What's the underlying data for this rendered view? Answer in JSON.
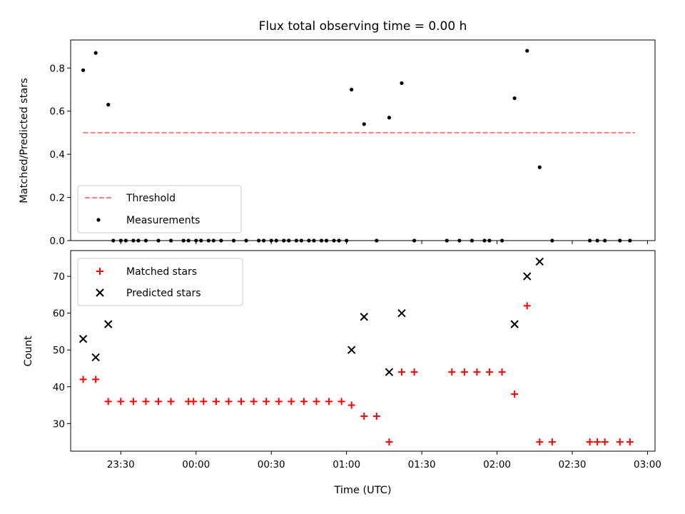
{
  "chart_data": [
    {
      "type": "scatter",
      "title": "Flux total observing time = 0.00 h",
      "ylabel": "Matched/Predicted stars",
      "xlabel": "",
      "xlim": [
        "23:10",
        "03:03"
      ],
      "ylim": [
        0,
        0.93
      ],
      "yticks": [
        0.0,
        0.2,
        0.4,
        0.6,
        0.8
      ],
      "ytick_labels": [
        "0.0",
        "0.2",
        "0.4",
        "0.6",
        "0.8"
      ],
      "legend_position": "lower-left",
      "threshold": {
        "name": "Threshold",
        "value": 0.5,
        "x_start": "23:15",
        "x_end": "02:55",
        "color": "#ff7f7f"
      },
      "series": [
        {
          "name": "Measurements",
          "color": "#000000",
          "points": [
            [
              "23:15",
              0.79
            ],
            [
              "23:20",
              0.87
            ],
            [
              "23:25",
              0.63
            ],
            [
              "23:27",
              0.0
            ],
            [
              "23:30",
              0.0
            ],
            [
              "23:32",
              0.0
            ],
            [
              "23:35",
              0.0
            ],
            [
              "23:37",
              0.0
            ],
            [
              "23:40",
              0.0
            ],
            [
              "23:45",
              0.0
            ],
            [
              "23:50",
              0.0
            ],
            [
              "23:55",
              0.0
            ],
            [
              "23:57",
              0.0
            ],
            [
              "00:00",
              0.0
            ],
            [
              "00:02",
              0.0
            ],
            [
              "00:05",
              0.0
            ],
            [
              "00:07",
              0.0
            ],
            [
              "00:10",
              0.0
            ],
            [
              "00:15",
              0.0
            ],
            [
              "00:20",
              0.0
            ],
            [
              "00:25",
              0.0
            ],
            [
              "00:27",
              0.0
            ],
            [
              "00:30",
              0.0
            ],
            [
              "00:32",
              0.0
            ],
            [
              "00:35",
              0.0
            ],
            [
              "00:37",
              0.0
            ],
            [
              "00:40",
              0.0
            ],
            [
              "00:42",
              0.0
            ],
            [
              "00:45",
              0.0
            ],
            [
              "00:47",
              0.0
            ],
            [
              "00:50",
              0.0
            ],
            [
              "00:52",
              0.0
            ],
            [
              "00:55",
              0.0
            ],
            [
              "00:57",
              0.0
            ],
            [
              "01:00",
              0.0
            ],
            [
              "01:02",
              0.7
            ],
            [
              "01:07",
              0.54
            ],
            [
              "01:12",
              0.0
            ],
            [
              "01:17",
              0.57
            ],
            [
              "01:22",
              0.73
            ],
            [
              "01:27",
              0.0
            ],
            [
              "01:40",
              0.0
            ],
            [
              "01:45",
              0.0
            ],
            [
              "01:50",
              0.0
            ],
            [
              "01:55",
              0.0
            ],
            [
              "01:57",
              0.0
            ],
            [
              "02:02",
              0.0
            ],
            [
              "02:07",
              0.66
            ],
            [
              "02:12",
              0.88
            ],
            [
              "02:17",
              0.34
            ],
            [
              "02:22",
              0.0
            ],
            [
              "02:37",
              0.0
            ],
            [
              "02:40",
              0.0
            ],
            [
              "02:43",
              0.0
            ],
            [
              "02:49",
              0.0
            ],
            [
              "02:53",
              0.0
            ]
          ]
        }
      ]
    },
    {
      "type": "scatter",
      "title": "",
      "ylabel": "Count",
      "xlabel": "Time (UTC)",
      "xlim": [
        "23:10",
        "03:03"
      ],
      "ylim": [
        22.5,
        77
      ],
      "yticks": [
        30,
        40,
        50,
        60,
        70
      ],
      "ytick_labels": [
        "30",
        "40",
        "50",
        "60",
        "70"
      ],
      "xticks": [
        "23:30",
        "00:00",
        "00:30",
        "01:00",
        "01:30",
        "02:00",
        "02:30",
        "03:00"
      ],
      "xtick_labels": [
        "23:30",
        "00:00",
        "00:30",
        "01:00",
        "01:30",
        "02:00",
        "02:30",
        "03:00"
      ],
      "legend_position": "upper-left",
      "series": [
        {
          "name": "Matched stars",
          "color": "#ff0000",
          "marker": "plus",
          "points": [
            [
              "23:15",
              42
            ],
            [
              "23:20",
              42
            ],
            [
              "23:25",
              36
            ],
            [
              "23:30",
              36
            ],
            [
              "23:35",
              36
            ],
            [
              "23:40",
              36
            ],
            [
              "23:45",
              36
            ],
            [
              "23:50",
              36
            ],
            [
              "23:57",
              36
            ],
            [
              "23:59",
              36
            ],
            [
              "00:03",
              36
            ],
            [
              "00:08",
              36
            ],
            [
              "00:13",
              36
            ],
            [
              "00:18",
              36
            ],
            [
              "00:23",
              36
            ],
            [
              "00:28",
              36
            ],
            [
              "00:33",
              36
            ],
            [
              "00:38",
              36
            ],
            [
              "00:43",
              36
            ],
            [
              "00:48",
              36
            ],
            [
              "00:53",
              36
            ],
            [
              "00:58",
              36
            ],
            [
              "01:02",
              35
            ],
            [
              "01:07",
              32
            ],
            [
              "01:12",
              32
            ],
            [
              "01:17",
              25
            ],
            [
              "01:22",
              44
            ],
            [
              "01:27",
              44
            ],
            [
              "01:42",
              44
            ],
            [
              "01:47",
              44
            ],
            [
              "01:52",
              44
            ],
            [
              "01:57",
              44
            ],
            [
              "02:02",
              44
            ],
            [
              "02:07",
              38
            ],
            [
              "02:12",
              62
            ],
            [
              "02:17",
              25
            ],
            [
              "02:22",
              25
            ],
            [
              "02:37",
              25
            ],
            [
              "02:40",
              25
            ],
            [
              "02:43",
              25
            ],
            [
              "02:49",
              25
            ],
            [
              "02:53",
              25
            ]
          ]
        },
        {
          "name": "Predicted stars",
          "color": "#000000",
          "marker": "x",
          "points": [
            [
              "23:15",
              53
            ],
            [
              "23:20",
              48
            ],
            [
              "23:25",
              57
            ],
            [
              "01:02",
              50
            ],
            [
              "01:07",
              59
            ],
            [
              "01:17",
              44
            ],
            [
              "01:22",
              60
            ],
            [
              "02:07",
              57
            ],
            [
              "02:12",
              70
            ],
            [
              "02:17",
              74
            ]
          ]
        }
      ]
    }
  ]
}
